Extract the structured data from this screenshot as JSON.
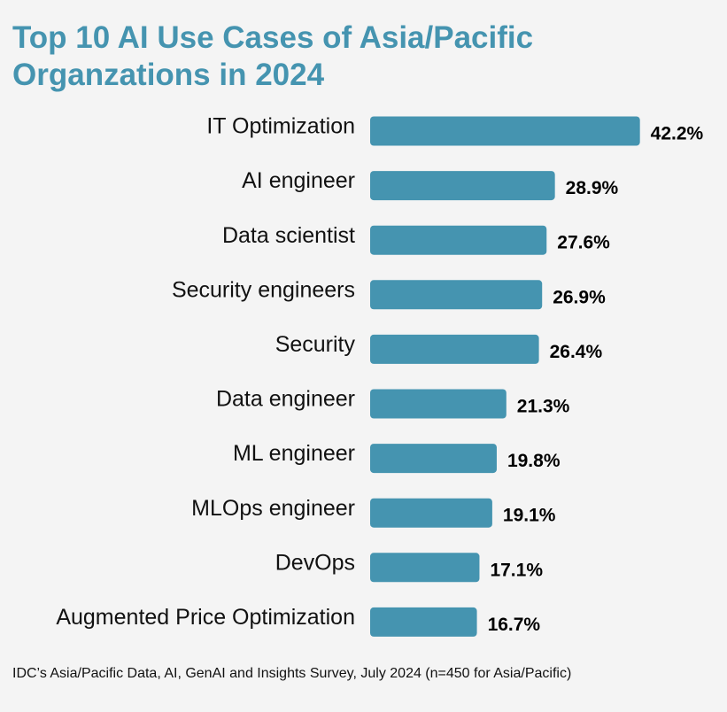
{
  "title_lines": [
    "Top 10 AI Use Cases of Asia/Pacific",
    "Organzations in 2024"
  ],
  "footnote": "IDC’s Asia/Pacific Data, AI, GenAI and Insights Survey, July 2024 (n=450 for Asia/Pacific)",
  "colors": {
    "bar": "#4594b0",
    "title": "#4594b0",
    "background": "#f4f4f4"
  },
  "chart_data": {
    "type": "bar",
    "orientation": "horizontal",
    "title": "Top 10 AI Use Cases of Asia/Pacific Organzations in 2024",
    "categories": [
      "IT Optimization",
      "AI engineer",
      "Data scientist",
      "Security engineers",
      "Security",
      "Data engineer",
      "ML engineer",
      "MLOps engineer",
      "DevOps",
      "Augmented Price Optimization"
    ],
    "values": [
      42.2,
      28.9,
      27.6,
      26.9,
      26.4,
      21.3,
      19.8,
      19.1,
      17.1,
      16.7
    ],
    "value_labels": [
      "42.2%",
      "28.9%",
      "27.6%",
      "26.9%",
      "26.4%",
      "21.3%",
      "19.8%",
      "19.1%",
      "17.1%",
      "16.7%"
    ],
    "unit": "%",
    "grid": false,
    "legend": "none"
  }
}
